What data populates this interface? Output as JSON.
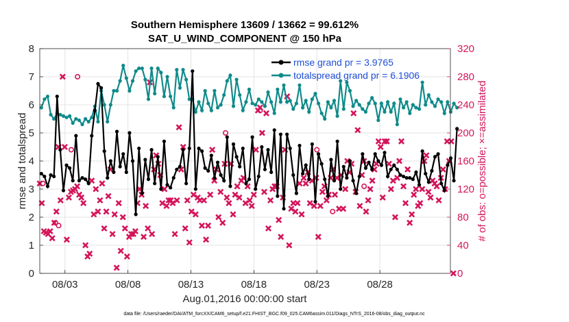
{
  "chart_data": {
    "type": "line",
    "title": "Southern Hemisphere 13609 / 13662 = 99.612%",
    "subtitle": "SAT_U_WIND_COMPONENT @ 150 hPa",
    "xlabel": "Aug.01,2016 00:00:00 start",
    "ylabel_left": "rmse and totalspread",
    "ylabel_right": "# of obs: o=possible; ×=assimilated",
    "xlim": [
      0,
      32.6
    ],
    "ylim_left": [
      0,
      8
    ],
    "ylim_right": [
      0,
      320
    ],
    "x_ticks": [
      {
        "value": 2,
        "label": "08/03"
      },
      {
        "value": 7,
        "label": "08/08"
      },
      {
        "value": 12,
        "label": "08/13"
      },
      {
        "value": 17,
        "label": "08/18"
      },
      {
        "value": 22,
        "label": "08/23"
      },
      {
        "value": 27,
        "label": "08/28"
      }
    ],
    "y_ticks_left": [
      0,
      1,
      2,
      3,
      4,
      5,
      6,
      7,
      8
    ],
    "y_ticks_right": [
      0,
      40,
      80,
      120,
      160,
      200,
      240,
      280,
      320
    ],
    "grid": true,
    "legend_position": "top-right",
    "x_step": 0.25,
    "series": [
      {
        "name": "rmse grand pr = 3.9765",
        "axis": "left",
        "color": "#000000",
        "marker": "circle",
        "values": [
          3.55,
          3.45,
          3.1,
          3.5,
          3.45,
          6.3,
          4.4,
          2.95,
          3.85,
          3.75,
          3.3,
          4.9,
          3.3,
          3.4,
          3.35,
          3.2,
          4.9,
          5.8,
          6.75,
          6.6,
          4.35,
          3.4,
          4.0,
          3.6,
          5.05,
          3.8,
          4.25,
          3.6,
          5.0,
          4.0,
          2.1,
          4.45,
          2.85,
          4.05,
          3.35,
          4.4,
          3.2,
          4.15,
          3.0,
          4.7,
          3.15,
          3.05,
          3.4,
          3.7,
          3.8,
          4.4,
          3.2,
          4.45,
          7.2,
          3.0,
          4.45,
          4.35,
          3.75,
          3.65,
          4.2,
          3.4,
          3.95,
          3.5,
          3.3,
          4.85,
          3.1,
          4.6,
          4.15,
          3.8,
          4.45,
          3.2,
          3.35,
          4.85,
          3.0,
          3.45,
          4.5,
          3.7,
          4.4,
          3.6,
          5.1,
          2.75,
          4.95,
          2.3,
          4.95,
          4.45,
          3.5,
          2.85,
          4.55,
          3.55,
          3.85,
          3.35,
          4.6,
          2.55,
          4.25,
          3.9,
          3.35,
          2.75,
          4.05,
          3.3,
          4.7,
          3.0,
          3.8,
          3.4,
          4.0,
          3.3,
          2.85,
          3.45,
          4.25,
          3.75,
          3.95,
          3.7,
          4.25,
          4.0,
          3.85,
          4.3,
          3.45,
          3.7,
          3.85,
          3.7,
          3.5,
          3.45,
          3.4,
          3.4,
          3.35,
          3.6,
          3.15,
          4.35,
          3.55,
          3.25,
          3.65,
          4.15,
          4.25,
          3.2,
          2.95,
          3.85,
          4.1,
          3.3,
          5.15
        ]
      },
      {
        "name": "totalspread grand pr = 6.1906",
        "axis": "left",
        "color": "#0f8a8a",
        "marker": "circle",
        "values": [
          5.9,
          6.2,
          6.3,
          5.65,
          5.5,
          5.7,
          5.65,
          5.6,
          5.55,
          5.6,
          5.35,
          5.5,
          5.45,
          5.3,
          5.5,
          5.4,
          5.55,
          5.95,
          5.4,
          6.5,
          6.0,
          5.4,
          6.0,
          6.5,
          6.5,
          6.85,
          7.4,
          6.95,
          6.5,
          6.85,
          7.2,
          7.3,
          7.3,
          6.9,
          6.2,
          7.3,
          6.4,
          7.3,
          7.15,
          6.3,
          7.0,
          6.3,
          5.9,
          7.25,
          6.6,
          7.25,
          6.9,
          6.2,
          6.2,
          5.75,
          6.1,
          5.8,
          6.5,
          6.05,
          5.8,
          6.5,
          5.9,
          6.0,
          6.35,
          6.85,
          7.05,
          5.95,
          6.9,
          6.35,
          5.8,
          6.1,
          6.55,
          6.05,
          6.0,
          6.2,
          6.1,
          5.95,
          6.45,
          6.1,
          5.7,
          6.55,
          6.1,
          6.7,
          6.1,
          6.15,
          5.85,
          6.05,
          6.7,
          5.9,
          6.15,
          5.75,
          6.2,
          6.4,
          6.05,
          5.7,
          5.5,
          6.1,
          5.9,
          6.15,
          5.6,
          6.85,
          5.85,
          6.8,
          6.5,
          5.95,
          6.15,
          6.0,
          5.85,
          5.75,
          6.05,
          6.25,
          6.05,
          5.45,
          6.05,
          5.75,
          6.1,
          5.75,
          6.05,
          5.3,
          6.2,
          5.9,
          6.1,
          5.7,
          6.0,
          5.9,
          5.85,
          6.8,
          6.0,
          6.35,
          6.1,
          5.95,
          6.2,
          6.1,
          5.7,
          6.1,
          5.75,
          6.05,
          5.9
        ]
      },
      {
        "name": "obs possible",
        "axis": "right",
        "color": "#d4145a",
        "marker": "o",
        "points": [
          [
            0.25,
            128
          ],
          [
            1.25,
            72
          ],
          [
            1.5,
            68
          ],
          [
            2.5,
            176
          ],
          [
            3.0,
            280
          ],
          [
            14.75,
            200
          ],
          [
            17.5,
            232
          ],
          [
            22.0,
            176
          ],
          [
            23.25,
            88
          ],
          [
            25.75,
            124
          ]
        ]
      },
      {
        "name": "obs assimilated",
        "axis": "right",
        "color": "#d4145a",
        "marker": "x",
        "values": [
          128,
          100,
          60,
          58,
          56,
          60,
          50,
          72,
          88,
          180,
          104,
          280,
          180,
          48,
          108,
          116,
          118,
          120,
          124,
          112,
          108,
          100,
          40,
          24,
          28,
          132,
          84,
          120,
          88,
          104,
          128,
          64,
          88,
          110,
          148,
          56,
          84,
          8,
          100,
          32,
          80,
          64,
          24,
          52,
          56,
          56,
          60,
          100,
          120,
          112,
          52,
          96,
          64,
          272,
          56,
          148,
          168,
          156,
          140,
          100,
          120,
          96,
          104,
          104,
          100,
          56,
          104,
          208,
          148,
          180,
          64,
          104,
          44,
          88,
          112,
          84,
          108,
          104,
          68,
          104,
          48,
          68,
          112,
          176,
          132,
          148,
          80,
          116,
          72,
          156,
          108,
          100,
          156,
          84,
          112,
          124,
          108,
          132,
          136,
          100,
          124,
          104,
          96,
          112,
          176,
          232,
          236,
          200,
          116,
          228,
          64,
          104,
          120,
          124,
          124,
          76,
          52,
          108,
          176,
          252,
          40,
          92,
          100,
          88,
          100,
          128,
          84,
          136,
          128,
          144,
          100,
          132,
          96,
          136,
          52,
          96,
          116,
          124,
          104,
          112,
          136,
          148,
          112,
          136,
          92,
          140,
          92,
          120,
          160,
          144,
          156,
          228,
          116,
          204,
          96,
          140,
          160,
          88,
          104,
          120,
          132,
          148,
          156,
          188,
          180,
          108,
          188,
          188,
          156,
          120,
          132,
          80,
          136,
          160,
          188,
          124,
          100,
          148,
          72,
          84,
          112,
          120,
          96,
          100,
          120,
          160,
          168,
          116,
          108,
          132,
          128,
          124,
          104,
          136,
          148,
          120,
          188,
          160,
          188,
          0
        ]
      }
    ]
  },
  "footer": "data file: /Users/raeder/DAI/ATM_forcXX/CAM6_setup/f.e21.FHIST_BGC.f09_025.CAM6assim.011/Diags_NTrS_2016-08/obs_diag_output.nc"
}
